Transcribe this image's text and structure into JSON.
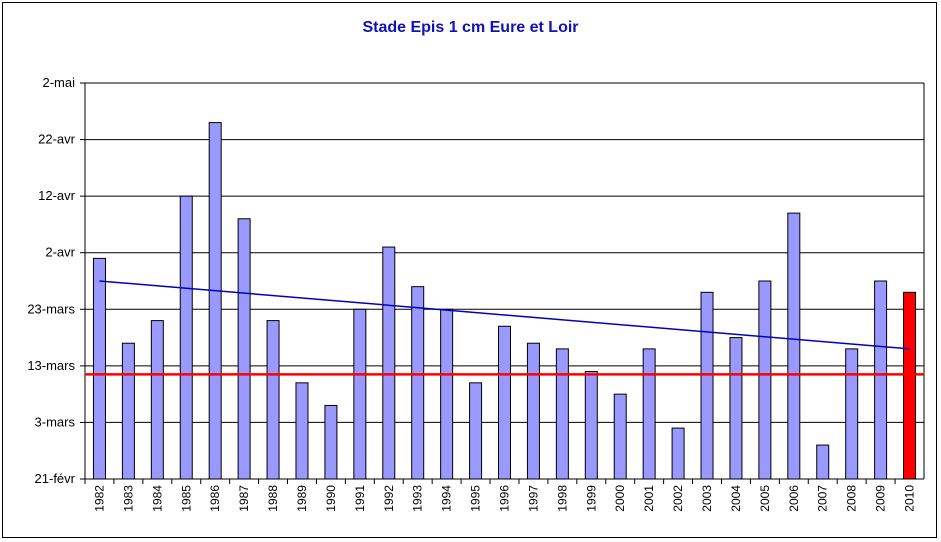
{
  "chart_data": {
    "type": "bar",
    "title": "Stade Epis 1 cm Eure et Loir",
    "xlabel": "",
    "ylabel": "",
    "y_tick_labels": [
      "21-févr",
      "3-mars",
      "13-mars",
      "23-mars",
      "2-avr",
      "12-avr",
      "22-avr",
      "2-mai"
    ],
    "ylim_days": [
      0,
      70
    ],
    "y_unit_note": "days after 21-févr",
    "categories": [
      "1982",
      "1983",
      "1984",
      "1985",
      "1986",
      "1987",
      "1988",
      "1989",
      "1990",
      "1991",
      "1992",
      "1993",
      "1994",
      "1995",
      "1996",
      "1997",
      "1998",
      "1999",
      "2000",
      "2001",
      "2002",
      "2003",
      "2004",
      "2005",
      "2006",
      "2007",
      "2008",
      "2009",
      "2010"
    ],
    "series": [
      {
        "name": "",
        "values": [
          39,
          24,
          28,
          50,
          63,
          46,
          28,
          17,
          13,
          30,
          41,
          34,
          30,
          17,
          27,
          24,
          23,
          19,
          15,
          23,
          9,
          33,
          25,
          35,
          47,
          6,
          23,
          35,
          33
        ],
        "color": "#9999ff",
        "highlight_last": "#ff0000"
      }
    ],
    "trendline": {
      "start_value": 35,
      "end_value": 23,
      "color": "#0000c0"
    },
    "reference_line": {
      "value": 18.5,
      "color": "#ff0000"
    },
    "grid": true,
    "legend": "none"
  }
}
